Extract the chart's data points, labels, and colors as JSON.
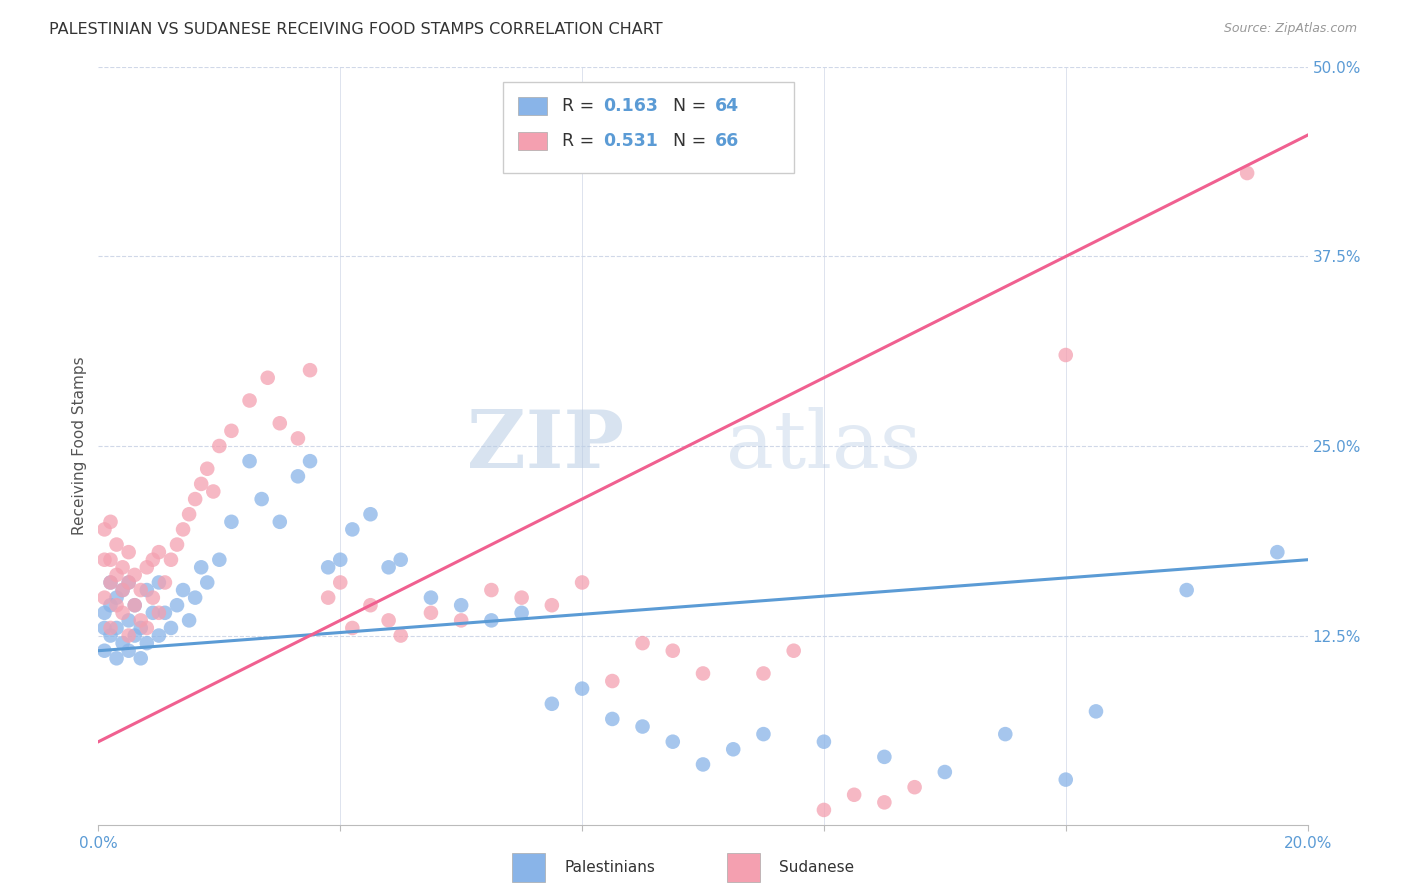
{
  "title": "PALESTINIAN VS SUDANESE RECEIVING FOOD STAMPS CORRELATION CHART",
  "source": "Source: ZipAtlas.com",
  "ylabel": "Receiving Food Stamps",
  "xlim": [
    0.0,
    0.2
  ],
  "ylim": [
    0.0,
    0.5
  ],
  "blue_color": "#89b4e8",
  "pink_color": "#f4a0b0",
  "blue_line_color": "#5b9bd5",
  "pink_line_color": "#f06090",
  "background_color": "#ffffff",
  "grid_color": "#d0d8e8",
  "watermark_zip": "ZIP",
  "watermark_atlas": "atlas",
  "legend_label_blue": "Palestinians",
  "legend_label_pink": "Sudanese",
  "blue_R": 0.163,
  "blue_N": 64,
  "pink_R": 0.531,
  "pink_N": 66,
  "blue_scatter_x": [
    0.001,
    0.001,
    0.001,
    0.002,
    0.002,
    0.002,
    0.003,
    0.003,
    0.003,
    0.004,
    0.004,
    0.005,
    0.005,
    0.005,
    0.006,
    0.006,
    0.007,
    0.007,
    0.008,
    0.008,
    0.009,
    0.01,
    0.01,
    0.011,
    0.012,
    0.013,
    0.014,
    0.015,
    0.016,
    0.017,
    0.018,
    0.02,
    0.022,
    0.025,
    0.027,
    0.03,
    0.033,
    0.035,
    0.038,
    0.04,
    0.042,
    0.045,
    0.048,
    0.05,
    0.055,
    0.06,
    0.065,
    0.07,
    0.075,
    0.08,
    0.085,
    0.09,
    0.095,
    0.1,
    0.105,
    0.11,
    0.12,
    0.13,
    0.14,
    0.15,
    0.16,
    0.165,
    0.18,
    0.195
  ],
  "blue_scatter_y": [
    0.115,
    0.13,
    0.14,
    0.125,
    0.145,
    0.16,
    0.11,
    0.13,
    0.15,
    0.12,
    0.155,
    0.115,
    0.135,
    0.16,
    0.125,
    0.145,
    0.11,
    0.13,
    0.12,
    0.155,
    0.14,
    0.125,
    0.16,
    0.14,
    0.13,
    0.145,
    0.155,
    0.135,
    0.15,
    0.17,
    0.16,
    0.175,
    0.2,
    0.24,
    0.215,
    0.2,
    0.23,
    0.24,
    0.17,
    0.175,
    0.195,
    0.205,
    0.17,
    0.175,
    0.15,
    0.145,
    0.135,
    0.14,
    0.08,
    0.09,
    0.07,
    0.065,
    0.055,
    0.04,
    0.05,
    0.06,
    0.055,
    0.045,
    0.035,
    0.06,
    0.03,
    0.075,
    0.155,
    0.18
  ],
  "pink_scatter_x": [
    0.001,
    0.001,
    0.001,
    0.002,
    0.002,
    0.002,
    0.002,
    0.003,
    0.003,
    0.003,
    0.004,
    0.004,
    0.004,
    0.005,
    0.005,
    0.005,
    0.006,
    0.006,
    0.007,
    0.007,
    0.008,
    0.008,
    0.009,
    0.009,
    0.01,
    0.01,
    0.011,
    0.012,
    0.013,
    0.014,
    0.015,
    0.016,
    0.017,
    0.018,
    0.019,
    0.02,
    0.022,
    0.025,
    0.028,
    0.03,
    0.033,
    0.035,
    0.038,
    0.04,
    0.042,
    0.045,
    0.048,
    0.05,
    0.055,
    0.06,
    0.065,
    0.07,
    0.075,
    0.08,
    0.085,
    0.09,
    0.095,
    0.1,
    0.11,
    0.115,
    0.12,
    0.125,
    0.13,
    0.135,
    0.16,
    0.19
  ],
  "pink_scatter_y": [
    0.15,
    0.175,
    0.195,
    0.13,
    0.16,
    0.175,
    0.2,
    0.145,
    0.165,
    0.185,
    0.14,
    0.155,
    0.17,
    0.125,
    0.16,
    0.18,
    0.145,
    0.165,
    0.135,
    0.155,
    0.13,
    0.17,
    0.15,
    0.175,
    0.14,
    0.18,
    0.16,
    0.175,
    0.185,
    0.195,
    0.205,
    0.215,
    0.225,
    0.235,
    0.22,
    0.25,
    0.26,
    0.28,
    0.295,
    0.265,
    0.255,
    0.3,
    0.15,
    0.16,
    0.13,
    0.145,
    0.135,
    0.125,
    0.14,
    0.135,
    0.155,
    0.15,
    0.145,
    0.16,
    0.095,
    0.12,
    0.115,
    0.1,
    0.1,
    0.115,
    0.01,
    0.02,
    0.015,
    0.025,
    0.31,
    0.43
  ],
  "blue_line_x0": 0.0,
  "blue_line_x1": 0.2,
  "blue_line_y0": 0.115,
  "blue_line_y1": 0.175,
  "pink_line_x0": 0.0,
  "pink_line_x1": 0.2,
  "pink_line_y0": 0.055,
  "pink_line_y1": 0.455
}
